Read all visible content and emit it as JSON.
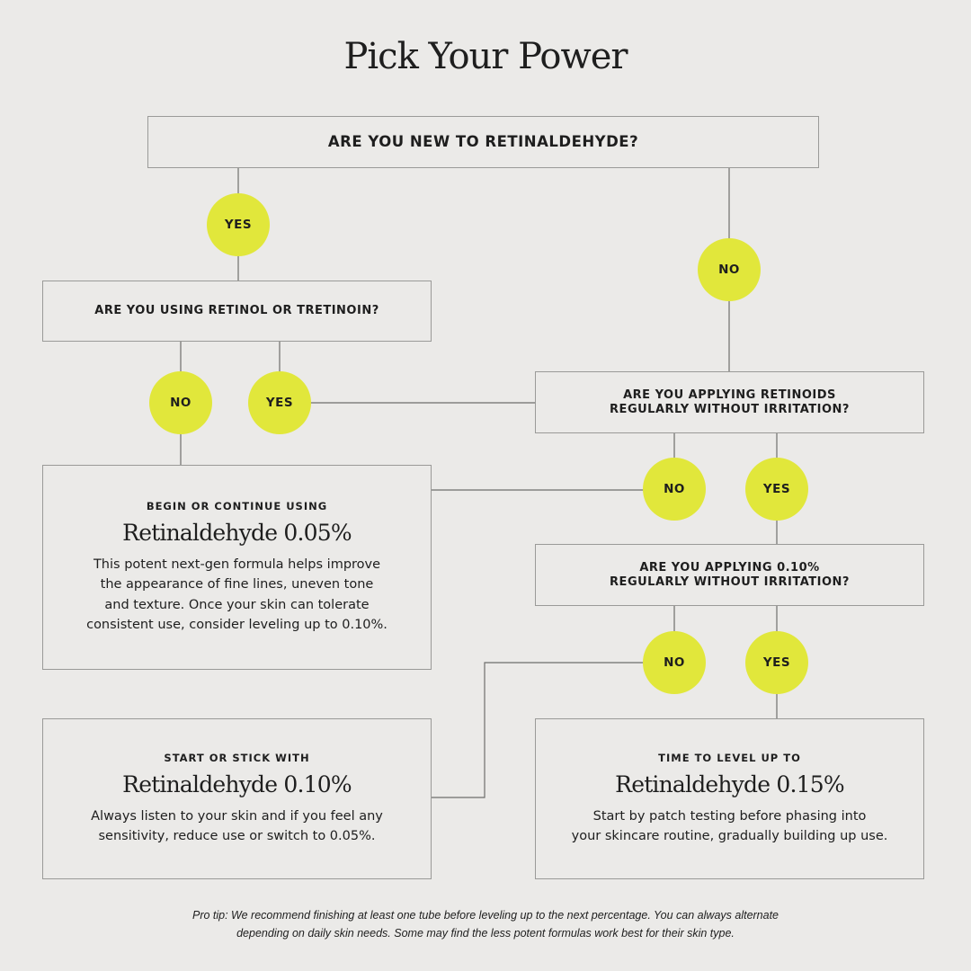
{
  "title": "Pick Your Power",
  "colors": {
    "background": "#ebeae8",
    "accent": "#e1e73b",
    "border": "#9a9a98"
  },
  "questions": {
    "q1": "ARE YOU NEW TO RETINALDEHYDE?",
    "q2": "ARE YOU USING RETINOL OR TRETINOIN?",
    "q3_line1": "ARE YOU APPLYING RETINOIDS",
    "q3_line2": "REGULARLY WITHOUT IRRITATION?",
    "q4_line1": "ARE YOU APPLYING 0.10%",
    "q4_line2": "REGULARLY WITHOUT IRRITATION?"
  },
  "answers": {
    "yes": "YES",
    "no": "NO"
  },
  "results": [
    {
      "kicker": "BEGIN OR CONTINUE USING",
      "product": "Retinaldehyde 0.05%",
      "desc_lines": [
        "This potent next-gen formula helps improve",
        "the appearance of fine lines, uneven tone",
        "and texture. Once your skin can tolerate",
        "consistent use, consider leveling up to 0.10%."
      ]
    },
    {
      "kicker": "START OR STICK WITH",
      "product": "Retinaldehyde 0.10%",
      "desc_lines": [
        "Always listen to your skin and if you feel any",
        "sensitivity, reduce use or switch to 0.05%."
      ]
    },
    {
      "kicker": "TIME TO LEVEL UP TO",
      "product": "Retinaldehyde 0.15%",
      "desc_lines": [
        "Start by patch testing before phasing into",
        "your skincare routine, gradually building up use."
      ]
    }
  ],
  "footer": {
    "line1": "Pro tip: We recommend finishing at least one tube before leveling up to the next percentage. You can always alternate",
    "line2": "depending on daily skin needs. Some may find the less potent formulas work best for their skin type."
  }
}
